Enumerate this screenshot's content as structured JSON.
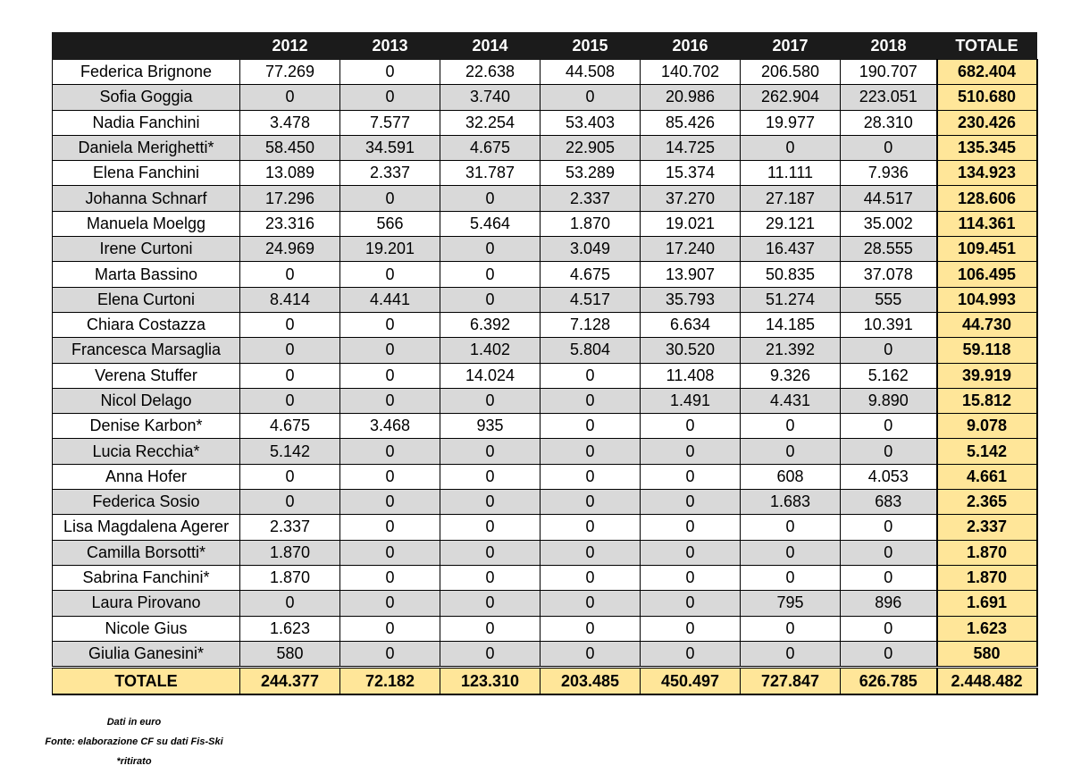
{
  "table": {
    "header": [
      "2012",
      "2013",
      "2014",
      "2015",
      "2016",
      "2017",
      "2018",
      "TOTALE"
    ],
    "rows": [
      [
        "Federica Brignone",
        "77.269",
        "0",
        "22.638",
        "44.508",
        "140.702",
        "206.580",
        "190.707",
        "682.404"
      ],
      [
        "Sofia Goggia",
        "0",
        "0",
        "3.740",
        "0",
        "20.986",
        "262.904",
        "223.051",
        "510.680"
      ],
      [
        "Nadia Fanchini",
        "3.478",
        "7.577",
        "32.254",
        "53.403",
        "85.426",
        "19.977",
        "28.310",
        "230.426"
      ],
      [
        "Daniela Merighetti*",
        "58.450",
        "34.591",
        "4.675",
        "22.905",
        "14.725",
        "0",
        "0",
        "135.345"
      ],
      [
        "Elena Fanchini",
        "13.089",
        "2.337",
        "31.787",
        "53.289",
        "15.374",
        "11.111",
        "7.936",
        "134.923"
      ],
      [
        "Johanna Schnarf",
        "17.296",
        "0",
        "0",
        "2.337",
        "37.270",
        "27.187",
        "44.517",
        "128.606"
      ],
      [
        "Manuela Moelgg",
        "23.316",
        "566",
        "5.464",
        "1.870",
        "19.021",
        "29.121",
        "35.002",
        "114.361"
      ],
      [
        "Irene Curtoni",
        "24.969",
        "19.201",
        "0",
        "3.049",
        "17.240",
        "16.437",
        "28.555",
        "109.451"
      ],
      [
        "Marta Bassino",
        "0",
        "0",
        "0",
        "4.675",
        "13.907",
        "50.835",
        "37.078",
        "106.495"
      ],
      [
        "Elena Curtoni",
        "8.414",
        "4.441",
        "0",
        "4.517",
        "35.793",
        "51.274",
        "555",
        "104.993"
      ],
      [
        "Chiara Costazza",
        "0",
        "0",
        "6.392",
        "7.128",
        "6.634",
        "14.185",
        "10.391",
        "44.730"
      ],
      [
        "Francesca Marsaglia",
        "0",
        "0",
        "1.402",
        "5.804",
        "30.520",
        "21.392",
        "0",
        "59.118"
      ],
      [
        "Verena Stuffer",
        "0",
        "0",
        "14.024",
        "0",
        "11.408",
        "9.326",
        "5.162",
        "39.919"
      ],
      [
        "Nicol Delago",
        "0",
        "0",
        "0",
        "0",
        "1.491",
        "4.431",
        "9.890",
        "15.812"
      ],
      [
        "Denise Karbon*",
        "4.675",
        "3.468",
        "935",
        "0",
        "0",
        "0",
        "0",
        "9.078"
      ],
      [
        "Lucia Recchia*",
        "5.142",
        "0",
        "0",
        "0",
        "0",
        "0",
        "0",
        "5.142"
      ],
      [
        "Anna Hofer",
        "0",
        "0",
        "0",
        "0",
        "0",
        "608",
        "4.053",
        "4.661"
      ],
      [
        "Federica Sosio",
        "0",
        "0",
        "0",
        "0",
        "0",
        "1.683",
        "683",
        "2.365"
      ],
      [
        "Lisa Magdalena Agerer",
        "2.337",
        "0",
        "0",
        "0",
        "0",
        "0",
        "0",
        "2.337"
      ],
      [
        "Camilla Borsotti*",
        "1.870",
        "0",
        "0",
        "0",
        "0",
        "0",
        "0",
        "1.870"
      ],
      [
        "Sabrina Fanchini*",
        "1.870",
        "0",
        "0",
        "0",
        "0",
        "0",
        "0",
        "1.870"
      ],
      [
        "Laura Pirovano",
        "0",
        "0",
        "0",
        "0",
        "0",
        "795",
        "896",
        "1.691"
      ],
      [
        "Nicole Gius",
        "1.623",
        "0",
        "0",
        "0",
        "0",
        "0",
        "0",
        "1.623"
      ],
      [
        "Giulia Ganesini*",
        "580",
        "0",
        "0",
        "0",
        "0",
        "0",
        "0",
        "580"
      ]
    ],
    "total_row": [
      "TOTALE",
      "244.377",
      "72.182",
      "123.310",
      "203.485",
      "450.497",
      "727.847",
      "626.785",
      "2.448.482"
    ]
  },
  "notes": [
    "Dati in euro",
    "Fonte: elaborazione CF su dati Fis-Ski",
    "*ritirato"
  ]
}
